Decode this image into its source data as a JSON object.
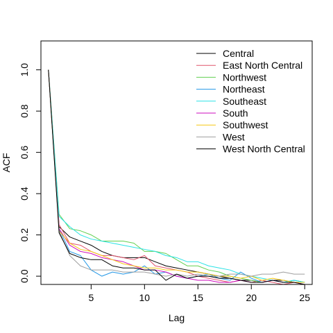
{
  "chart_data": {
    "type": "line",
    "title": "",
    "xlabel": "Lag",
    "ylabel": "ACF",
    "xlim": [
      0.3,
      25.7
    ],
    "ylim": [
      -0.04,
      1.14
    ],
    "xticks": [
      5,
      10,
      15,
      20,
      25
    ],
    "yticks": [
      0.0,
      0.2,
      0.4,
      0.6,
      0.8,
      1.0
    ],
    "xtick_labels": [
      "5",
      "10",
      "15",
      "20",
      "25"
    ],
    "ytick_labels": [
      "0.0",
      "0.2",
      "0.4",
      "0.6",
      "0.8",
      "1.0"
    ],
    "grid": false,
    "legend_position": "top-right",
    "x": [
      1,
      2,
      3,
      4,
      5,
      6,
      7,
      8,
      9,
      10,
      11,
      12,
      13,
      14,
      15,
      16,
      17,
      18,
      19,
      20,
      21,
      22,
      23,
      24,
      25
    ],
    "series": [
      {
        "name": "Central",
        "color": "#000000",
        "values": [
          1.0,
          0.24,
          0.19,
          0.17,
          0.15,
          0.12,
          0.1,
          0.09,
          0.09,
          0.09,
          0.07,
          0.05,
          0.04,
          0.03,
          0.02,
          0.01,
          0.0,
          -0.01,
          -0.02,
          -0.02,
          -0.03,
          -0.02,
          -0.02,
          -0.03,
          -0.03
        ]
      },
      {
        "name": "East North Central",
        "color": "#df536b",
        "values": [
          1.0,
          0.25,
          0.16,
          0.15,
          0.12,
          0.1,
          0.1,
          0.09,
          0.08,
          0.1,
          0.05,
          0.04,
          0.03,
          0.02,
          0.0,
          -0.01,
          -0.02,
          -0.03,
          -0.02,
          -0.03,
          -0.02,
          -0.03,
          -0.04,
          -0.03,
          -0.04
        ]
      },
      {
        "name": "Northwest",
        "color": "#61d04f",
        "values": [
          1.0,
          0.3,
          0.23,
          0.22,
          0.2,
          0.17,
          0.17,
          0.17,
          0.16,
          0.12,
          0.12,
          0.11,
          0.08,
          0.05,
          0.05,
          0.03,
          0.02,
          0.0,
          -0.01,
          -0.02,
          -0.03,
          -0.02,
          -0.03,
          -0.02,
          -0.03
        ]
      },
      {
        "name": "Northeast",
        "color": "#2297e6",
        "values": [
          1.0,
          0.23,
          0.12,
          0.1,
          0.03,
          0.0,
          0.02,
          0.01,
          0.02,
          0.05,
          0.01,
          0.02,
          0.0,
          -0.01,
          0.0,
          0.01,
          -0.01,
          -0.02,
          0.02,
          -0.01,
          -0.03,
          -0.02,
          -0.03,
          -0.02,
          -0.03
        ]
      },
      {
        "name": "Southeast",
        "color": "#28e2e5",
        "values": [
          1.0,
          0.29,
          0.24,
          0.2,
          0.18,
          0.17,
          0.16,
          0.15,
          0.14,
          0.13,
          0.12,
          0.1,
          0.09,
          0.07,
          0.07,
          0.05,
          0.04,
          0.03,
          0.01,
          0.0,
          -0.01,
          -0.02,
          -0.03,
          -0.02,
          -0.03
        ]
      },
      {
        "name": "South",
        "color": "#cd0bbc",
        "values": [
          1.0,
          0.23,
          0.15,
          0.12,
          0.11,
          0.09,
          0.08,
          0.07,
          0.05,
          0.03,
          0.03,
          0.02,
          0.0,
          -0.01,
          -0.02,
          -0.02,
          -0.03,
          -0.03,
          -0.02,
          -0.03,
          -0.03,
          -0.02,
          -0.03,
          -0.03,
          -0.04
        ]
      },
      {
        "name": "Southwest",
        "color": "#f5c710",
        "values": [
          1.0,
          0.22,
          0.16,
          0.13,
          0.12,
          0.1,
          0.08,
          0.06,
          0.05,
          0.04,
          0.04,
          0.03,
          0.03,
          0.02,
          0.02,
          0.01,
          0.0,
          0.0,
          -0.01,
          0.0,
          -0.02,
          -0.01,
          -0.02,
          -0.03,
          -0.03
        ]
      },
      {
        "name": "West",
        "color": "#9e9e9e",
        "values": [
          1.0,
          0.22,
          0.1,
          0.05,
          0.03,
          0.03,
          0.03,
          0.02,
          0.02,
          0.02,
          0.01,
          0.0,
          0.01,
          0.0,
          0.01,
          0.0,
          0.0,
          0.01,
          0.01,
          0.0,
          0.01,
          0.01,
          0.02,
          0.01,
          0.01
        ]
      },
      {
        "name": "West North Central",
        "color": "#000000",
        "values": [
          1.0,
          0.21,
          0.11,
          0.09,
          0.08,
          0.08,
          0.05,
          0.04,
          0.04,
          0.03,
          0.03,
          -0.02,
          0.01,
          -0.01,
          0.0,
          0.0,
          -0.01,
          -0.01,
          -0.02,
          -0.03,
          -0.03,
          -0.02,
          -0.03,
          -0.03,
          -0.04
        ]
      }
    ]
  }
}
